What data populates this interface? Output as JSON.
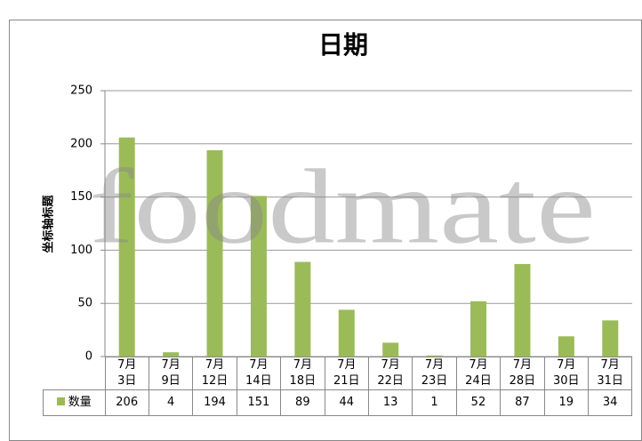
{
  "chart_data": {
    "type": "bar",
    "title": "日期",
    "y_label": "坐标轴标题",
    "annotation": "foodmate",
    "categories": [
      "7月\n3日",
      "7月\n9日",
      "7月\n12日",
      "7月\n14日",
      "7月\n18日",
      "7月\n21日",
      "7月\n22日",
      "7月\n23日",
      "7月\n24日",
      "7月\n28日",
      "7月\n30日",
      "7月\n31日"
    ],
    "series": [
      {
        "name": "数量",
        "color": "#9bbb59",
        "values": [
          206,
          4,
          194,
          151,
          89,
          44,
          13,
          1,
          52,
          87,
          19,
          34
        ]
      }
    ],
    "ylim": [
      0,
      250
    ],
    "yticks": [
      0,
      50,
      100,
      150,
      200,
      250
    ],
    "grid": true
  }
}
